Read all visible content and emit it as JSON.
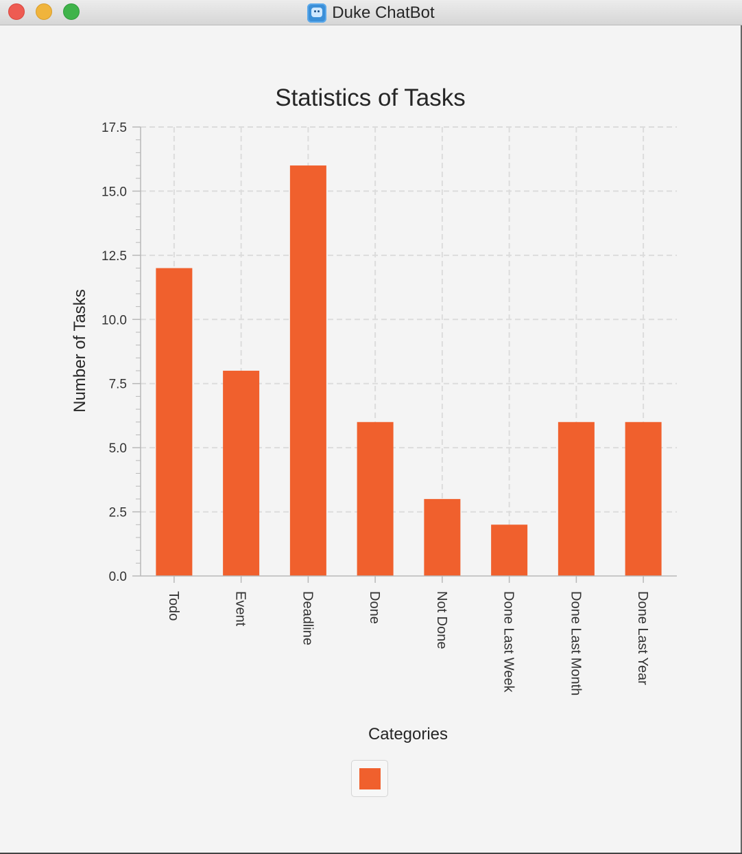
{
  "window": {
    "title": "Duke ChatBot"
  },
  "colors": {
    "bar": "#f0602d",
    "grid": "#dcdcdc",
    "axis": "#b8b8b8",
    "text": "#333333"
  },
  "icons": {
    "close": "close-icon",
    "minimize": "minimize-icon",
    "maximize": "maximize-icon",
    "app": "chatbot-app-icon"
  },
  "chart_data": {
    "type": "bar",
    "title": "Statistics of Tasks",
    "xlabel": "Categories",
    "ylabel": "Number of Tasks",
    "categories": [
      "Todo",
      "Event",
      "Deadline",
      "Done",
      "Not Done",
      "Done Last Week",
      "Done Last Month",
      "Done Last Year"
    ],
    "values": [
      12,
      8,
      16,
      6,
      3,
      2,
      6,
      6
    ],
    "ylim": [
      0,
      17.5
    ],
    "yticks": [
      "0.0",
      "2.5",
      "5.0",
      "7.5",
      "10.0",
      "12.5",
      "15.0",
      "17.5"
    ],
    "grid": true,
    "x_tick_rotation": "vertical",
    "legend": {
      "position": "bottom-center",
      "entries": [
        ""
      ]
    }
  }
}
